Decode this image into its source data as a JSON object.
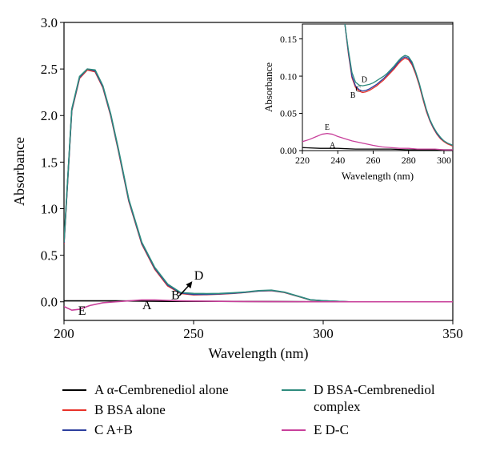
{
  "chart_data": [
    {
      "type": "line",
      "xlabel": "Wavelength (nm)",
      "ylabel": "Absorbance",
      "xlim": [
        200,
        350
      ],
      "ylim": [
        -0.2,
        3.0
      ],
      "xticks": [
        "200",
        "250",
        "300",
        "350"
      ],
      "yticks": [
        "0.0",
        "0.5",
        "1.0",
        "1.5",
        "2.0",
        "2.5",
        "3.0"
      ],
      "annotations": [
        "A",
        "B",
        "D",
        "E"
      ],
      "series": [
        {
          "name": "A α-Cembrenediol alone",
          "color": "#000000",
          "x": [
            200,
            220,
            240,
            260,
            280,
            300,
            320,
            350
          ],
          "values": [
            0.01,
            0.01,
            0.005,
            0.005,
            0.003,
            0.0,
            0.0,
            0.0
          ]
        },
        {
          "name": "B BSA alone",
          "color": "#e8332a",
          "x": [
            200,
            203,
            206,
            209,
            212,
            215,
            218,
            221,
            225,
            230,
            235,
            240,
            245,
            250,
            255,
            260,
            265,
            270,
            275,
            280,
            285,
            290,
            295,
            300,
            310,
            320,
            350
          ],
          "values": [
            0.62,
            2.05,
            2.4,
            2.49,
            2.47,
            2.3,
            2.0,
            1.62,
            1.08,
            0.62,
            0.35,
            0.17,
            0.09,
            0.075,
            0.077,
            0.082,
            0.09,
            0.1,
            0.115,
            0.12,
            0.1,
            0.06,
            0.02,
            0.01,
            0.0,
            0.0,
            0.0
          ]
        },
        {
          "name": "C A+B",
          "color": "#2d3f9e",
          "x": [
            200,
            203,
            206,
            209,
            212,
            215,
            218,
            221,
            225,
            230,
            235,
            240,
            245,
            250,
            255,
            260,
            265,
            270,
            275,
            280,
            285,
            290,
            295,
            300,
            310,
            320,
            350
          ],
          "values": [
            0.63,
            2.06,
            2.41,
            2.5,
            2.48,
            2.31,
            2.01,
            1.63,
            1.09,
            0.63,
            0.36,
            0.18,
            0.095,
            0.08,
            0.08,
            0.085,
            0.092,
            0.102,
            0.117,
            0.122,
            0.102,
            0.062,
            0.021,
            0.011,
            0.0,
            0.0,
            0.0
          ]
        },
        {
          "name": "D BSA-Cembrenediol complex",
          "color": "#2e8b7e",
          "x": [
            200,
            203,
            206,
            209,
            212,
            215,
            218,
            221,
            225,
            230,
            235,
            240,
            245,
            250,
            255,
            260,
            265,
            270,
            275,
            280,
            285,
            290,
            295,
            300,
            310,
            320,
            350
          ],
          "values": [
            0.64,
            2.07,
            2.42,
            2.5,
            2.49,
            2.32,
            2.02,
            1.64,
            1.1,
            0.64,
            0.37,
            0.19,
            0.1,
            0.09,
            0.088,
            0.09,
            0.096,
            0.105,
            0.12,
            0.125,
            0.104,
            0.063,
            0.022,
            0.011,
            0.0,
            0.0,
            0.0
          ]
        },
        {
          "name": "E D-C",
          "color": "#c8409b",
          "x": [
            200,
            203,
            206,
            210,
            215,
            220,
            225,
            230,
            235,
            240,
            245,
            250,
            260,
            270,
            280,
            290,
            300,
            320,
            350
          ],
          "values": [
            -0.05,
            -0.09,
            -0.08,
            -0.04,
            -0.01,
            0.0,
            0.01,
            0.02,
            0.02,
            0.015,
            0.01,
            0.008,
            0.005,
            0.003,
            0.002,
            0.001,
            0.0,
            0.0,
            0.0
          ]
        }
      ]
    },
    {
      "type": "line",
      "inset": true,
      "xlabel": "Wavelength (nm)",
      "ylabel": "Absorbance",
      "xlim": [
        220,
        305
      ],
      "ylim": [
        0.0,
        0.17
      ],
      "xticks": [
        "220",
        "240",
        "260",
        "280",
        "300"
      ],
      "yticks": [
        "0.00",
        "0.05",
        "0.10",
        "0.15"
      ],
      "annotations": [
        "A",
        "B",
        "C",
        "D",
        "E"
      ],
      "series": [
        {
          "name": "A",
          "color": "#000000",
          "x": [
            220,
            230,
            240,
            250,
            260,
            270,
            280,
            290,
            300,
            305
          ],
          "values": [
            0.004,
            0.003,
            0.003,
            0.002,
            0.002,
            0.002,
            0.001,
            0.001,
            0.001,
            0.001
          ]
        },
        {
          "name": "B",
          "color": "#e8332a",
          "x": [
            244,
            246,
            248,
            250,
            252,
            254,
            256,
            258,
            260,
            262,
            264,
            266,
            268,
            270,
            272,
            274,
            276,
            278,
            280,
            282,
            284,
            286,
            288,
            290,
            292,
            294,
            296,
            298,
            300,
            302,
            305
          ],
          "values": [
            0.17,
            0.13,
            0.098,
            0.085,
            0.08,
            0.078,
            0.079,
            0.081,
            0.084,
            0.087,
            0.091,
            0.095,
            0.1,
            0.105,
            0.11,
            0.116,
            0.121,
            0.124,
            0.122,
            0.115,
            0.103,
            0.088,
            0.07,
            0.053,
            0.04,
            0.03,
            0.022,
            0.016,
            0.012,
            0.009,
            0.006
          ]
        },
        {
          "name": "C",
          "color": "#2d3f9e",
          "x": [
            244,
            246,
            248,
            250,
            252,
            254,
            256,
            258,
            260,
            262,
            264,
            266,
            268,
            270,
            272,
            274,
            276,
            278,
            280,
            282,
            284,
            286,
            288,
            290,
            292,
            294,
            296,
            298,
            300,
            302,
            305
          ],
          "values": [
            0.17,
            0.132,
            0.1,
            0.087,
            0.082,
            0.08,
            0.081,
            0.083,
            0.086,
            0.089,
            0.093,
            0.097,
            0.102,
            0.107,
            0.112,
            0.118,
            0.123,
            0.126,
            0.124,
            0.117,
            0.105,
            0.09,
            0.072,
            0.055,
            0.041,
            0.031,
            0.023,
            0.017,
            0.013,
            0.01,
            0.007
          ]
        },
        {
          "name": "D",
          "color": "#2e8b7e",
          "x": [
            244,
            246,
            248,
            250,
            252,
            254,
            256,
            258,
            260,
            262,
            264,
            266,
            268,
            270,
            272,
            274,
            276,
            278,
            280,
            282,
            284,
            286,
            288,
            290,
            292,
            294,
            296,
            298,
            300,
            302,
            305
          ],
          "values": [
            0.17,
            0.135,
            0.105,
            0.092,
            0.088,
            0.087,
            0.088,
            0.089,
            0.091,
            0.094,
            0.097,
            0.1,
            0.104,
            0.109,
            0.114,
            0.12,
            0.125,
            0.128,
            0.126,
            0.119,
            0.106,
            0.091,
            0.073,
            0.056,
            0.042,
            0.032,
            0.024,
            0.018,
            0.013,
            0.01,
            0.007
          ]
        },
        {
          "name": "E",
          "color": "#c8409b",
          "x": [
            220,
            224,
            228,
            231,
            234,
            237,
            240,
            244,
            248,
            252,
            256,
            260,
            265,
            270,
            275,
            280,
            285,
            290,
            295,
            300,
            305
          ],
          "values": [
            0.012,
            0.015,
            0.019,
            0.022,
            0.023,
            0.022,
            0.019,
            0.016,
            0.013,
            0.011,
            0.009,
            0.007,
            0.005,
            0.004,
            0.003,
            0.003,
            0.002,
            0.002,
            0.002,
            0.001,
            0.001
          ]
        }
      ]
    }
  ],
  "legend": [
    {
      "label": "A α-Cembrenediol alone",
      "color": "#000000"
    },
    {
      "label": "D BSA-Cembrenediol complex",
      "color": "#2e8b7e"
    },
    {
      "label": "B BSA alone",
      "color": "#e8332a"
    },
    {
      "label": "C A+B",
      "color": "#2d3f9e"
    },
    {
      "label": "E D-C",
      "color": "#c8409b"
    }
  ]
}
